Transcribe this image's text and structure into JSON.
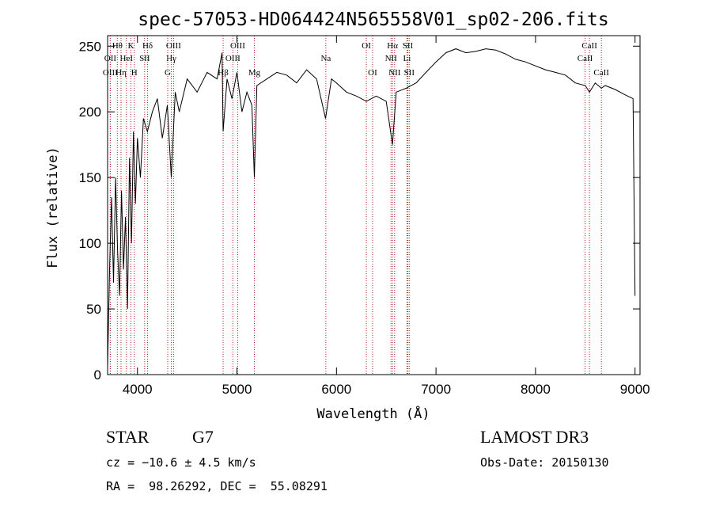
{
  "chart_data": {
    "type": "line",
    "title": "spec-57053-HD064424N565558V01_sp02-206.fits",
    "xlabel": "Wavelength (Å)",
    "ylabel": "Flux (relative)",
    "xlim": [
      3700,
      9050
    ],
    "ylim": [
      0,
      258
    ],
    "xticks": [
      4000,
      5000,
      6000,
      7000,
      8000,
      9000
    ],
    "yticks": [
      0,
      50,
      100,
      150,
      200,
      250
    ],
    "grid": false,
    "series": [
      {
        "x": [
          3700,
          3720,
          3740,
          3760,
          3780,
          3800,
          3820,
          3840,
          3860,
          3880,
          3900,
          3920,
          3940,
          3960,
          3980,
          4000,
          4030,
          4060,
          4100,
          4150,
          4200,
          4250,
          4300,
          4340,
          4380,
          4420,
          4500,
          4600,
          4700,
          4800,
          4850,
          4861,
          4900,
          4950,
          5000,
          5050,
          5100,
          5150,
          5175,
          5200,
          5300,
          5400,
          5500,
          5600,
          5700,
          5800,
          5890,
          5950,
          6000,
          6100,
          6200,
          6300,
          6400,
          6500,
          6563,
          6600,
          6700,
          6800,
          6900,
          7000,
          7100,
          7200,
          7300,
          7400,
          7500,
          7600,
          7700,
          7800,
          7900,
          8000,
          8100,
          8200,
          8300,
          8400,
          8500,
          8542,
          8600,
          8662,
          8700,
          8800,
          8900,
          8980,
          9000
        ],
        "y": [
          5,
          80,
          135,
          70,
          150,
          95,
          60,
          140,
          80,
          120,
          50,
          165,
          100,
          185,
          130,
          180,
          150,
          195,
          185,
          200,
          210,
          180,
          205,
          150,
          215,
          200,
          225,
          215,
          230,
          225,
          245,
          185,
          225,
          210,
          230,
          200,
          215,
          205,
          150,
          220,
          225,
          230,
          228,
          222,
          232,
          225,
          195,
          225,
          222,
          215,
          212,
          208,
          212,
          208,
          175,
          215,
          218,
          222,
          230,
          238,
          245,
          248,
          245,
          246,
          248,
          247,
          244,
          240,
          238,
          235,
          232,
          230,
          228,
          222,
          220,
          215,
          222,
          218,
          220,
          217,
          213,
          210,
          60
        ]
      }
    ],
    "lines": [
      {
        "name": "Hθ",
        "x": 3798,
        "row": 1
      },
      {
        "name": "OII",
        "x": 3727,
        "row": 2
      },
      {
        "name": "OIII",
        "x": 3727,
        "row": 3
      },
      {
        "name": "K",
        "x": 3934,
        "row": 1
      },
      {
        "name": "HeI",
        "x": 3889,
        "row": 2
      },
      {
        "name": "Hη",
        "x": 3835,
        "row": 3
      },
      {
        "name": "SII",
        "x": 4072,
        "row": 2
      },
      {
        "name": "H",
        "x": 3968,
        "row": 3
      },
      {
        "name": "Hδ",
        "x": 4102,
        "row": 1
      },
      {
        "name": "OIII",
        "x": 4363,
        "row": 1
      },
      {
        "name": "Hγ",
        "x": 4340,
        "row": 2
      },
      {
        "name": "G",
        "x": 4304,
        "row": 3
      },
      {
        "name": "OIII",
        "x": 5007,
        "row": 1
      },
      {
        "name": "OIII",
        "x": 4959,
        "row": 2
      },
      {
        "name": "Hβ",
        "x": 4861,
        "row": 3
      },
      {
        "name": "Mg",
        "x": 5175,
        "row": 3
      },
      {
        "name": "Na",
        "x": 5893,
        "row": 2
      },
      {
        "name": "OI",
        "x": 6300,
        "row": 1
      },
      {
        "name": "OI",
        "x": 6363,
        "row": 3
      },
      {
        "name": "Hα",
        "x": 6563,
        "row": 1
      },
      {
        "name": "SII",
        "x": 6717,
        "row": 1
      },
      {
        "name": "NII",
        "x": 6548,
        "row": 2
      },
      {
        "name": "Li",
        "x": 6708,
        "row": 2
      },
      {
        "name": "NII",
        "x": 6584,
        "row": 3
      },
      {
        "name": "SII",
        "x": 6731,
        "row": 3
      },
      {
        "name": "CaII",
        "x": 8542,
        "row": 1
      },
      {
        "name": "CaII",
        "x": 8498,
        "row": 2
      },
      {
        "name": "CaII",
        "x": 8662,
        "row": 3
      }
    ]
  },
  "info": {
    "object_type": "STAR",
    "subclass": "G7",
    "survey": "LAMOST DR3",
    "cz": "cz = −10.6 ± 4.5 km/s",
    "obs_date": "Obs-Date: 20150130",
    "coords": "RA =  98.26292, DEC =  55.08291"
  }
}
